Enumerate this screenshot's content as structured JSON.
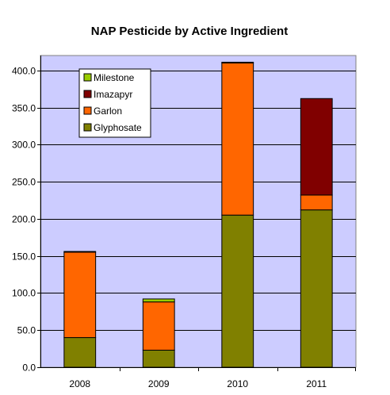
{
  "chart_data": {
    "type": "bar",
    "stacked": true,
    "title": "NAP Pesticide by Active Ingredient",
    "xlabel": "",
    "ylabel": "",
    "categories": [
      "2008",
      "2009",
      "2010",
      "2011"
    ],
    "series": [
      {
        "name": "Glyphosate",
        "color": "#808000",
        "values": [
          40,
          23,
          205,
          212
        ]
      },
      {
        "name": "Garlon",
        "color": "#ff6600",
        "values": [
          115,
          65,
          205,
          20
        ]
      },
      {
        "name": "Imazapyr",
        "color": "#800000",
        "values": [
          1,
          0,
          0,
          130
        ]
      },
      {
        "name": "Milestone",
        "color": "#99cc00",
        "values": [
          0,
          4,
          1,
          0
        ]
      }
    ],
    "legend_order": [
      "Milestone",
      "Imazapyr",
      "Garlon",
      "Glyphosate"
    ],
    "ylim": [
      0,
      420
    ],
    "yticks": [
      0,
      50,
      100,
      150,
      200,
      250,
      300,
      350,
      400
    ],
    "ytick_labels": [
      "0.0",
      "50.0",
      "100.0",
      "150.0",
      "200.0",
      "250.0",
      "300.0",
      "350.0",
      "400.0"
    ],
    "grid": true,
    "legend_position": "top-left",
    "plot_background": "#ccccff",
    "gridline_color": "#000000"
  }
}
